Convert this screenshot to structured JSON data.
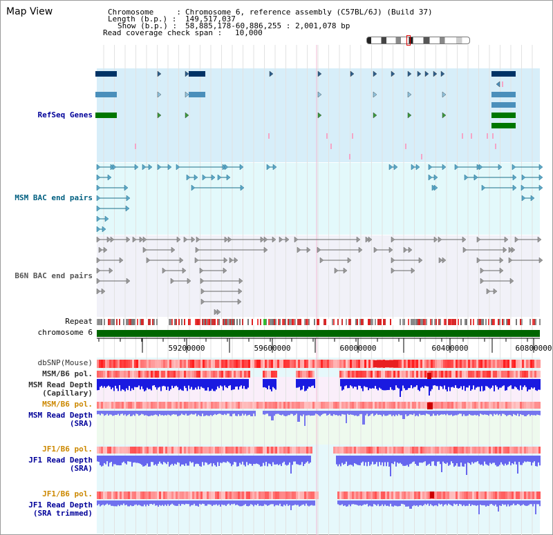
{
  "header": {
    "title": "Map View",
    "chromosome_label": "Chromosome     :",
    "chromosome_value": "Chromosome 6, reference assembly (C57BL/6J) (Build 37)",
    "length_label": "Length (b.p.) :",
    "length_value": "149,517,037",
    "show_label": "Show (b.p.) :",
    "show_value": "58,885,178-60,886,255 : 2,001,078 bp",
    "coverage_label": "Read coverage check span :",
    "coverage_value": "10,000"
  },
  "tracks": {
    "refseq": "RefSeq Genes",
    "msm_bac": "MSM BAC end pairs",
    "b6n_bac": "B6N BAC end pairs",
    "repeat": "Repeat",
    "chromosome": "chromosome 6",
    "dbsnp": "dbSNP(Mouse)",
    "msm_b6_pol": "MSM/B6 pol.",
    "msm_depth_1": "MSM Read Depth",
    "msm_depth_2": "(Capillary)",
    "msm_b6_pol_sra": "MSM/B6 pol.",
    "msm_sra_1": "MSM Read Depth",
    "msm_sra_2": "(SRA)",
    "jf1_pol": "JF1/B6 pol.",
    "jf1_depth_1": "JF1 Read Depth",
    "jf1_depth_2": "(SRA)",
    "jf1_pol_trim": "JF1/B6 pol.",
    "jf1_trim_1": "JF1 Read Depth",
    "jf1_trim_2": "(SRA trimmed)"
  },
  "axis": {
    "ticks": [
      "59200000",
      "59600000",
      "60000000",
      "60400000",
      "60800000"
    ]
  },
  "colors": {
    "refseq_band": "#d7eef9",
    "msm_band": "#e3f9fb",
    "b6n_band": "#f1f1f8",
    "refseq_text": "#000099",
    "msm_text": "#005f80",
    "b6n_text": "#555555",
    "pol_orange": "#cc8800",
    "depth_blue": "#1111cc",
    "chromosome_green": "#006600"
  }
}
